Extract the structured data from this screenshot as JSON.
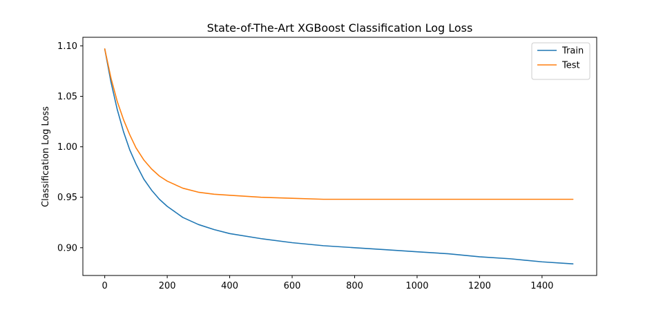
{
  "chart_data": {
    "type": "line",
    "title": "State-of-The-Art XGBoost Classification Log Loss",
    "xlabel": "",
    "ylabel": "Classification Log Loss",
    "xlim": [
      -70,
      1575
    ],
    "ylim": [
      0.8725,
      1.1085
    ],
    "xticks": [
      0,
      200,
      400,
      600,
      800,
      1000,
      1200,
      1400
    ],
    "xtick_labels": [
      "0",
      "200",
      "400",
      "600",
      "800",
      "1000",
      "1200",
      "1400"
    ],
    "yticks": [
      0.9,
      0.95,
      1.0,
      1.05,
      1.1
    ],
    "ytick_labels": [
      "0.90",
      "0.95",
      "1.00",
      "1.05",
      "1.10"
    ],
    "grid": false,
    "legend": {
      "position": "top-right",
      "entries": [
        "Train",
        "Test"
      ]
    },
    "series": [
      {
        "name": "Train",
        "color": "#1f77b4",
        "x": [
          0,
          20,
          40,
          60,
          80,
          100,
          125,
          150,
          175,
          200,
          250,
          300,
          350,
          400,
          500,
          600,
          700,
          800,
          900,
          1000,
          1100,
          1200,
          1300,
          1400,
          1499
        ],
        "y": [
          1.097,
          1.064,
          1.037,
          1.015,
          0.997,
          0.983,
          0.968,
          0.957,
          0.948,
          0.941,
          0.93,
          0.923,
          0.918,
          0.914,
          0.909,
          0.905,
          0.902,
          0.9,
          0.898,
          0.896,
          0.894,
          0.891,
          0.889,
          0.886,
          0.884
        ]
      },
      {
        "name": "Test",
        "color": "#ff7f0e",
        "x": [
          0,
          20,
          40,
          60,
          80,
          100,
          125,
          150,
          175,
          200,
          250,
          300,
          350,
          400,
          500,
          600,
          700,
          800,
          900,
          1000,
          1100,
          1200,
          1300,
          1400,
          1499
        ],
        "y": [
          1.097,
          1.068,
          1.045,
          1.027,
          1.012,
          0.999,
          0.987,
          0.978,
          0.971,
          0.966,
          0.959,
          0.955,
          0.953,
          0.952,
          0.95,
          0.949,
          0.948,
          0.948,
          0.948,
          0.948,
          0.948,
          0.948,
          0.948,
          0.948,
          0.948
        ]
      }
    ]
  }
}
